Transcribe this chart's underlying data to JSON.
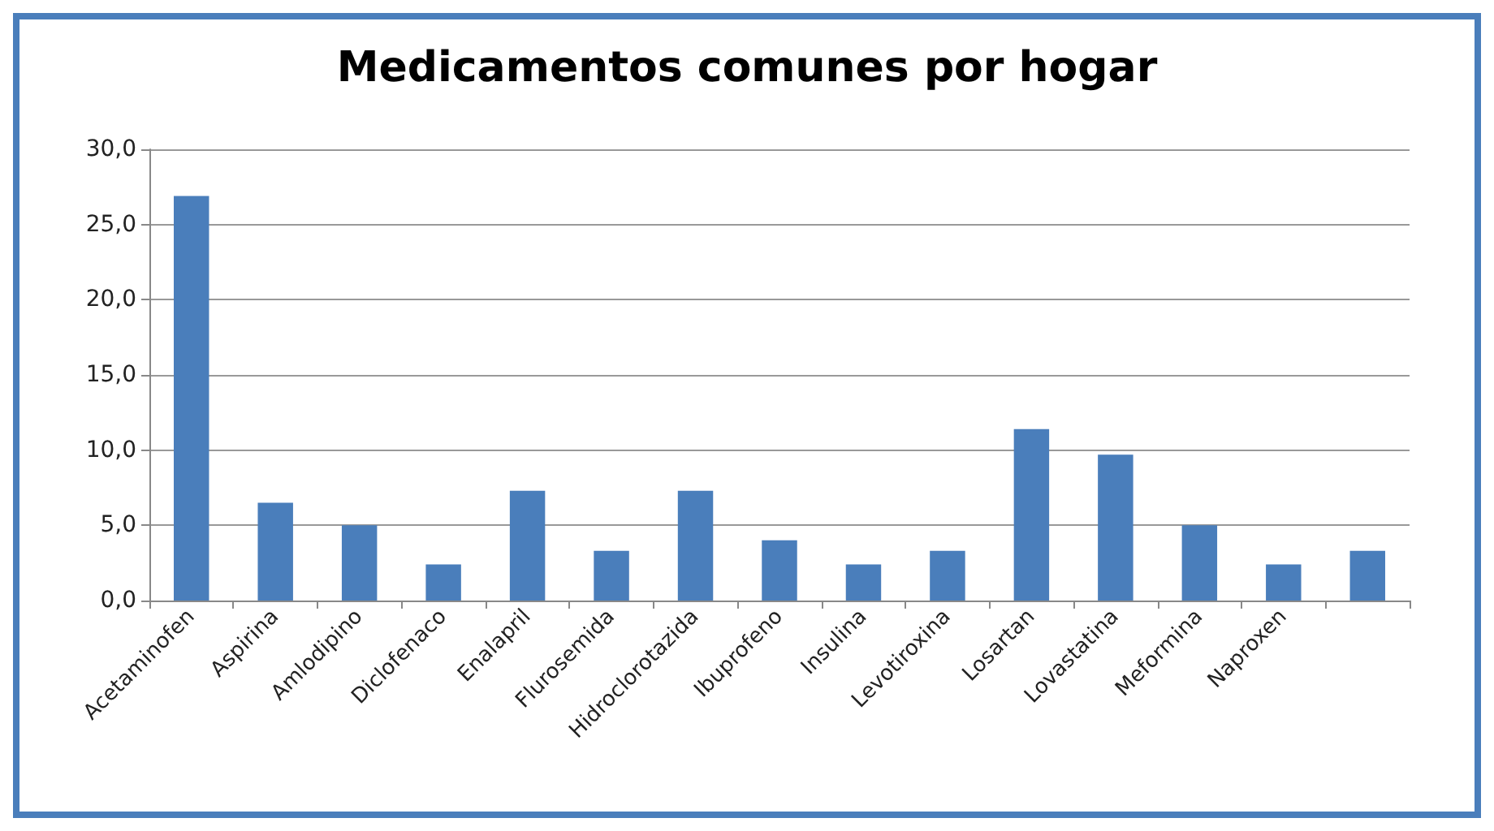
{
  "chart_data": {
    "type": "bar",
    "title": "Medicamentos comunes por hogar",
    "categories": [
      "Acetaminofen",
      "Aspirina",
      "Amlodipino",
      "Diclofenaco",
      "Enalapril",
      "Flurosemida",
      "Hidroclorotazida",
      "Ibuprofeno",
      "Insulina",
      "Levotiroxina",
      "Losartan",
      "Lovastatina",
      "Meformina",
      "Naproxen",
      null
    ],
    "values": [
      26.9,
      6.5,
      5.0,
      2.4,
      7.3,
      3.3,
      7.3,
      4.0,
      2.4,
      3.3,
      11.4,
      9.7,
      5.0,
      2.4,
      3.3
    ],
    "color": "#4a7ebb",
    "ylim": [
      0,
      30
    ],
    "yticks": [
      {
        "value": 0,
        "label": "0,0"
      },
      {
        "value": 5,
        "label": "5,0"
      },
      {
        "value": 10,
        "label": "10,0"
      },
      {
        "value": 15,
        "label": "15,0"
      },
      {
        "value": 20,
        "label": "20,0"
      },
      {
        "value": 25,
        "label": "25,0"
      },
      {
        "value": 30,
        "label": "30,0"
      }
    ],
    "grid": "y"
  }
}
